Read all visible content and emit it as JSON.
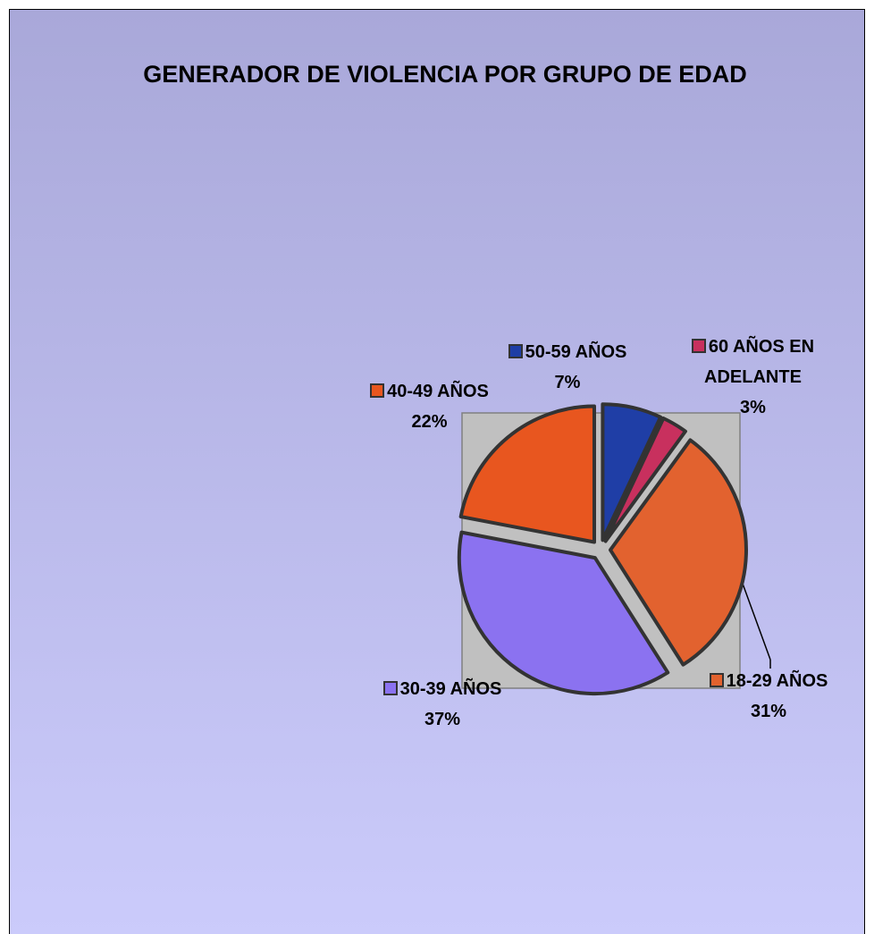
{
  "chart_data": {
    "type": "pie",
    "title": "GENERADOR DE VIOLENCIA POR GRUPO DE EDAD",
    "categories": [
      "50-59 AÑOS",
      "60 AÑOS EN ADELANTE",
      "18-29 AÑOS",
      "30-39 AÑOS",
      "40-49 AÑOS"
    ],
    "values": [
      7,
      3,
      31,
      37,
      22
    ],
    "value_labels": [
      "7%",
      "3%",
      "31%",
      "37%",
      "22%"
    ],
    "colors": [
      "#1f3ea6",
      "#c8305e",
      "#e2622f",
      "#8b72f0",
      "#e8561f"
    ]
  }
}
